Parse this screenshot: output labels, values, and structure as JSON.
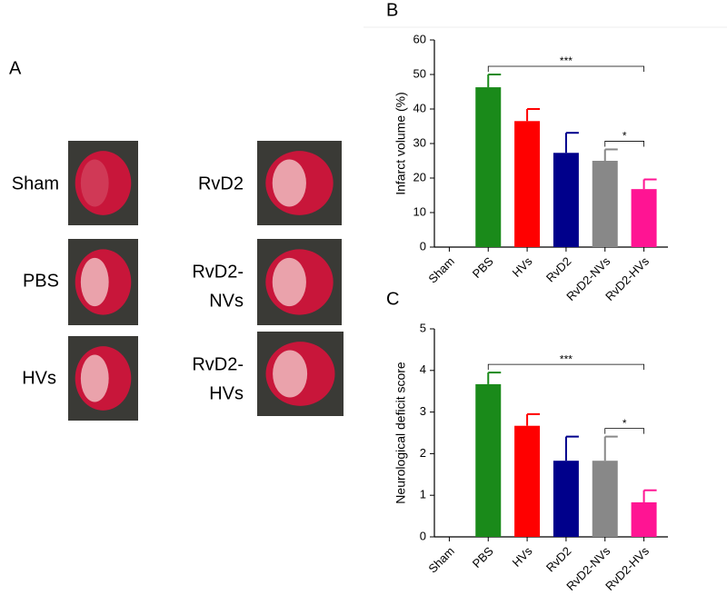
{
  "panel_a": {
    "label": "A",
    "images": [
      {
        "label": [
          "Sham"
        ]
      },
      {
        "label": [
          "PBS"
        ]
      },
      {
        "label": [
          "HVs"
        ]
      },
      {
        "label": [
          "RvD2"
        ]
      },
      {
        "label": [
          "RvD2-",
          "NVs"
        ]
      },
      {
        "label": [
          "RvD2-",
          "HVs"
        ]
      }
    ]
  },
  "chart_data": [
    {
      "type": "bar",
      "panel": "B",
      "ylabel": "Infarct volume (%)",
      "categories": [
        "Sham",
        "PBS",
        "HVs",
        "RvD2",
        "RvD2-NVs",
        "RvD2-HVs"
      ],
      "values": [
        0,
        46.3,
        36.5,
        27.3,
        25.0,
        16.8
      ],
      "errors": [
        0,
        3.7,
        3.5,
        5.8,
        3.3,
        2.8
      ],
      "colors": [
        "#1a8a1a",
        "#1a8a1a",
        "#ff0000",
        "#00008b",
        "#888888",
        "#ff1493"
      ],
      "ylim": [
        0,
        60
      ],
      "yticks": [
        0,
        10,
        20,
        30,
        40,
        50,
        60
      ],
      "annotations": [
        {
          "text": "***",
          "categories": [
            1,
            5
          ]
        },
        {
          "text": "*",
          "categories": [
            4,
            5
          ]
        }
      ]
    },
    {
      "type": "bar",
      "panel": "C",
      "ylabel": "Neurological deficit score",
      "categories": [
        "Sham",
        "PBS",
        "HVs",
        "RvD2",
        "RvD2-NVs",
        "RvD2-HVs"
      ],
      "values": [
        0,
        3.67,
        2.67,
        1.83,
        1.83,
        0.83
      ],
      "errors": [
        0,
        0.28,
        0.28,
        0.58,
        0.58,
        0.29
      ],
      "colors": [
        "#1a8a1a",
        "#1a8a1a",
        "#ff0000",
        "#00008b",
        "#888888",
        "#ff1493"
      ],
      "ylim": [
        0,
        5
      ],
      "yticks": [
        0,
        1,
        2,
        3,
        4,
        5
      ],
      "annotations": [
        {
          "text": "***",
          "categories": [
            1,
            5
          ]
        },
        {
          "text": "*",
          "categories": [
            4,
            5
          ]
        }
      ]
    }
  ]
}
